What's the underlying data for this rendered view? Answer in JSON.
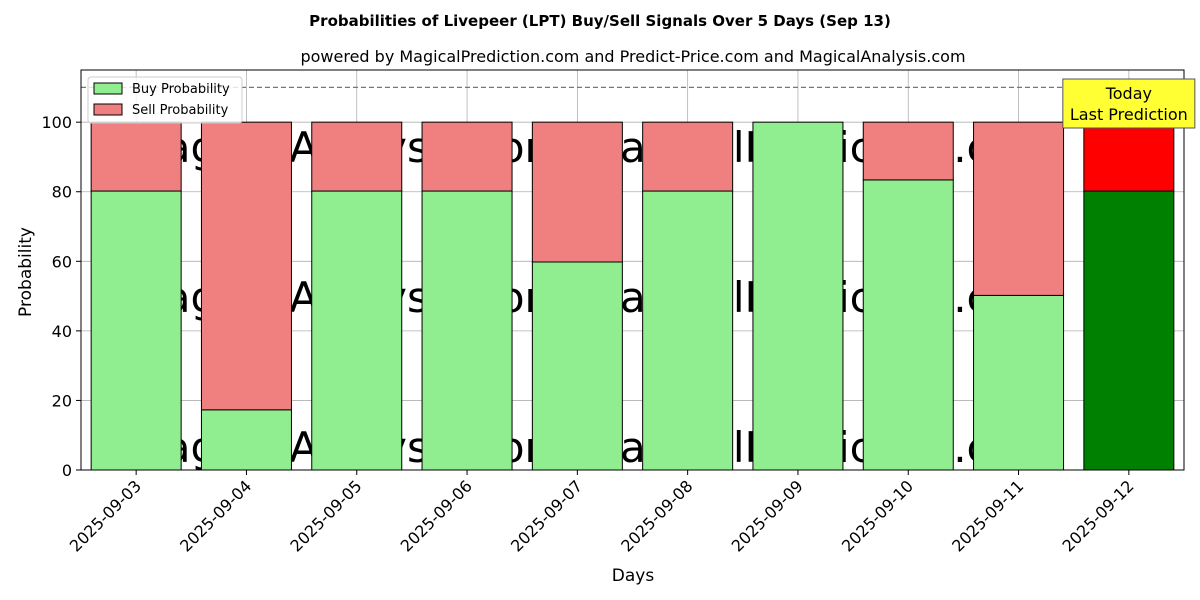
{
  "chart_data": {
    "type": "bar",
    "stacked": true,
    "title": "Probabilities of Livepeer (LPT) Buy/Sell Signals Over 5 Days (Sep 13)",
    "subtitle": "powered by MagicalPrediction.com and Predict-Price.com and MagicalAnalysis.com",
    "xlabel": "Days",
    "ylabel": "Probability",
    "ylim": [
      0,
      115
    ],
    "yticks": [
      0,
      20,
      40,
      60,
      80,
      100
    ],
    "grid": true,
    "legend_position": "top-left",
    "reference_line": 110,
    "categories": [
      "2025-09-03",
      "2025-09-04",
      "2025-09-05",
      "2025-09-06",
      "2025-09-07",
      "2025-09-08",
      "2025-09-09",
      "2025-09-10",
      "2025-09-11",
      "2025-09-12"
    ],
    "series": [
      {
        "name": "Buy Probability",
        "values": [
          80.2,
          17.3,
          80.2,
          80.2,
          59.8,
          80.2,
          100,
          83.4,
          50.2,
          80.2
        ],
        "color": "#90ee90",
        "highlight_color": "#008000"
      },
      {
        "name": "Sell Probability",
        "values": [
          19.8,
          82.7,
          19.8,
          19.8,
          40.2,
          19.8,
          0,
          16.6,
          49.8,
          19.8
        ],
        "color": "#f08080",
        "highlight_color": "#ff0000"
      }
    ],
    "highlight_index": 9,
    "annotation": {
      "line1": "Today",
      "line2": "Last Prediction",
      "color": "#ffff33"
    },
    "watermarks": [
      "MagicalAnalysis.com",
      "MagicalPrediction.com"
    ]
  }
}
